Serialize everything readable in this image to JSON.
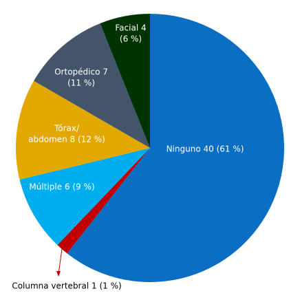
{
  "chart_data": {
    "type": "pie",
    "labels": [
      [
        "Ninguno 40 (61 %)"
      ],
      [
        "Columna vertebral 1 (1 %)"
      ],
      [
        "Múltiple 6 (9 %)"
      ],
      [
        "Tórax/",
        "abdomen 8 (12 %)"
      ],
      [
        "Ortopédico 7",
        "(11 %)"
      ],
      [
        "Facial 4",
        "(6 %)"
      ]
    ],
    "values": [
      40,
      1,
      6,
      8,
      7,
      4
    ],
    "colors": [
      "#0a6ec2",
      "#c00000",
      "#00aeef",
      "#e2a800",
      "#44546a",
      "#003300"
    ]
  }
}
